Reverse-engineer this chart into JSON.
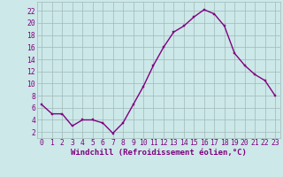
{
  "x": [
    0,
    1,
    2,
    3,
    4,
    5,
    6,
    7,
    8,
    9,
    10,
    11,
    12,
    13,
    14,
    15,
    16,
    17,
    18,
    19,
    20,
    21,
    22,
    23
  ],
  "y": [
    6.5,
    5.0,
    5.0,
    3.0,
    4.0,
    4.0,
    3.5,
    1.8,
    3.5,
    6.5,
    9.5,
    13.0,
    16.0,
    18.5,
    19.5,
    21.0,
    22.2,
    21.5,
    19.5,
    15.0,
    13.0,
    11.5,
    10.5,
    8.0
  ],
  "xlabel": "Windchill (Refroidissement éolien,°C)",
  "xtick_labels": [
    "0",
    "1",
    "2",
    "3",
    "4",
    "5",
    "6",
    "7",
    "8",
    "9",
    "10",
    "11",
    "12",
    "13",
    "14",
    "15",
    "16",
    "17",
    "18",
    "19",
    "20",
    "21",
    "22",
    "23"
  ],
  "ytick_labels": [
    "2",
    "4",
    "6",
    "8",
    "10",
    "12",
    "14",
    "16",
    "18",
    "20",
    "22"
  ],
  "yticks": [
    2,
    4,
    6,
    8,
    10,
    12,
    14,
    16,
    18,
    20,
    22
  ],
  "ylim": [
    1.0,
    23.5
  ],
  "xlim": [
    -0.5,
    23.5
  ],
  "line_color": "#800080",
  "marker_color": "#800080",
  "bg_color": "#cce8e8",
  "grid_color": "#a0b8b8",
  "text_color": "#800080",
  "label_fontsize": 6.5,
  "tick_fontsize": 5.8,
  "linewidth": 1.0,
  "markersize": 2.0
}
